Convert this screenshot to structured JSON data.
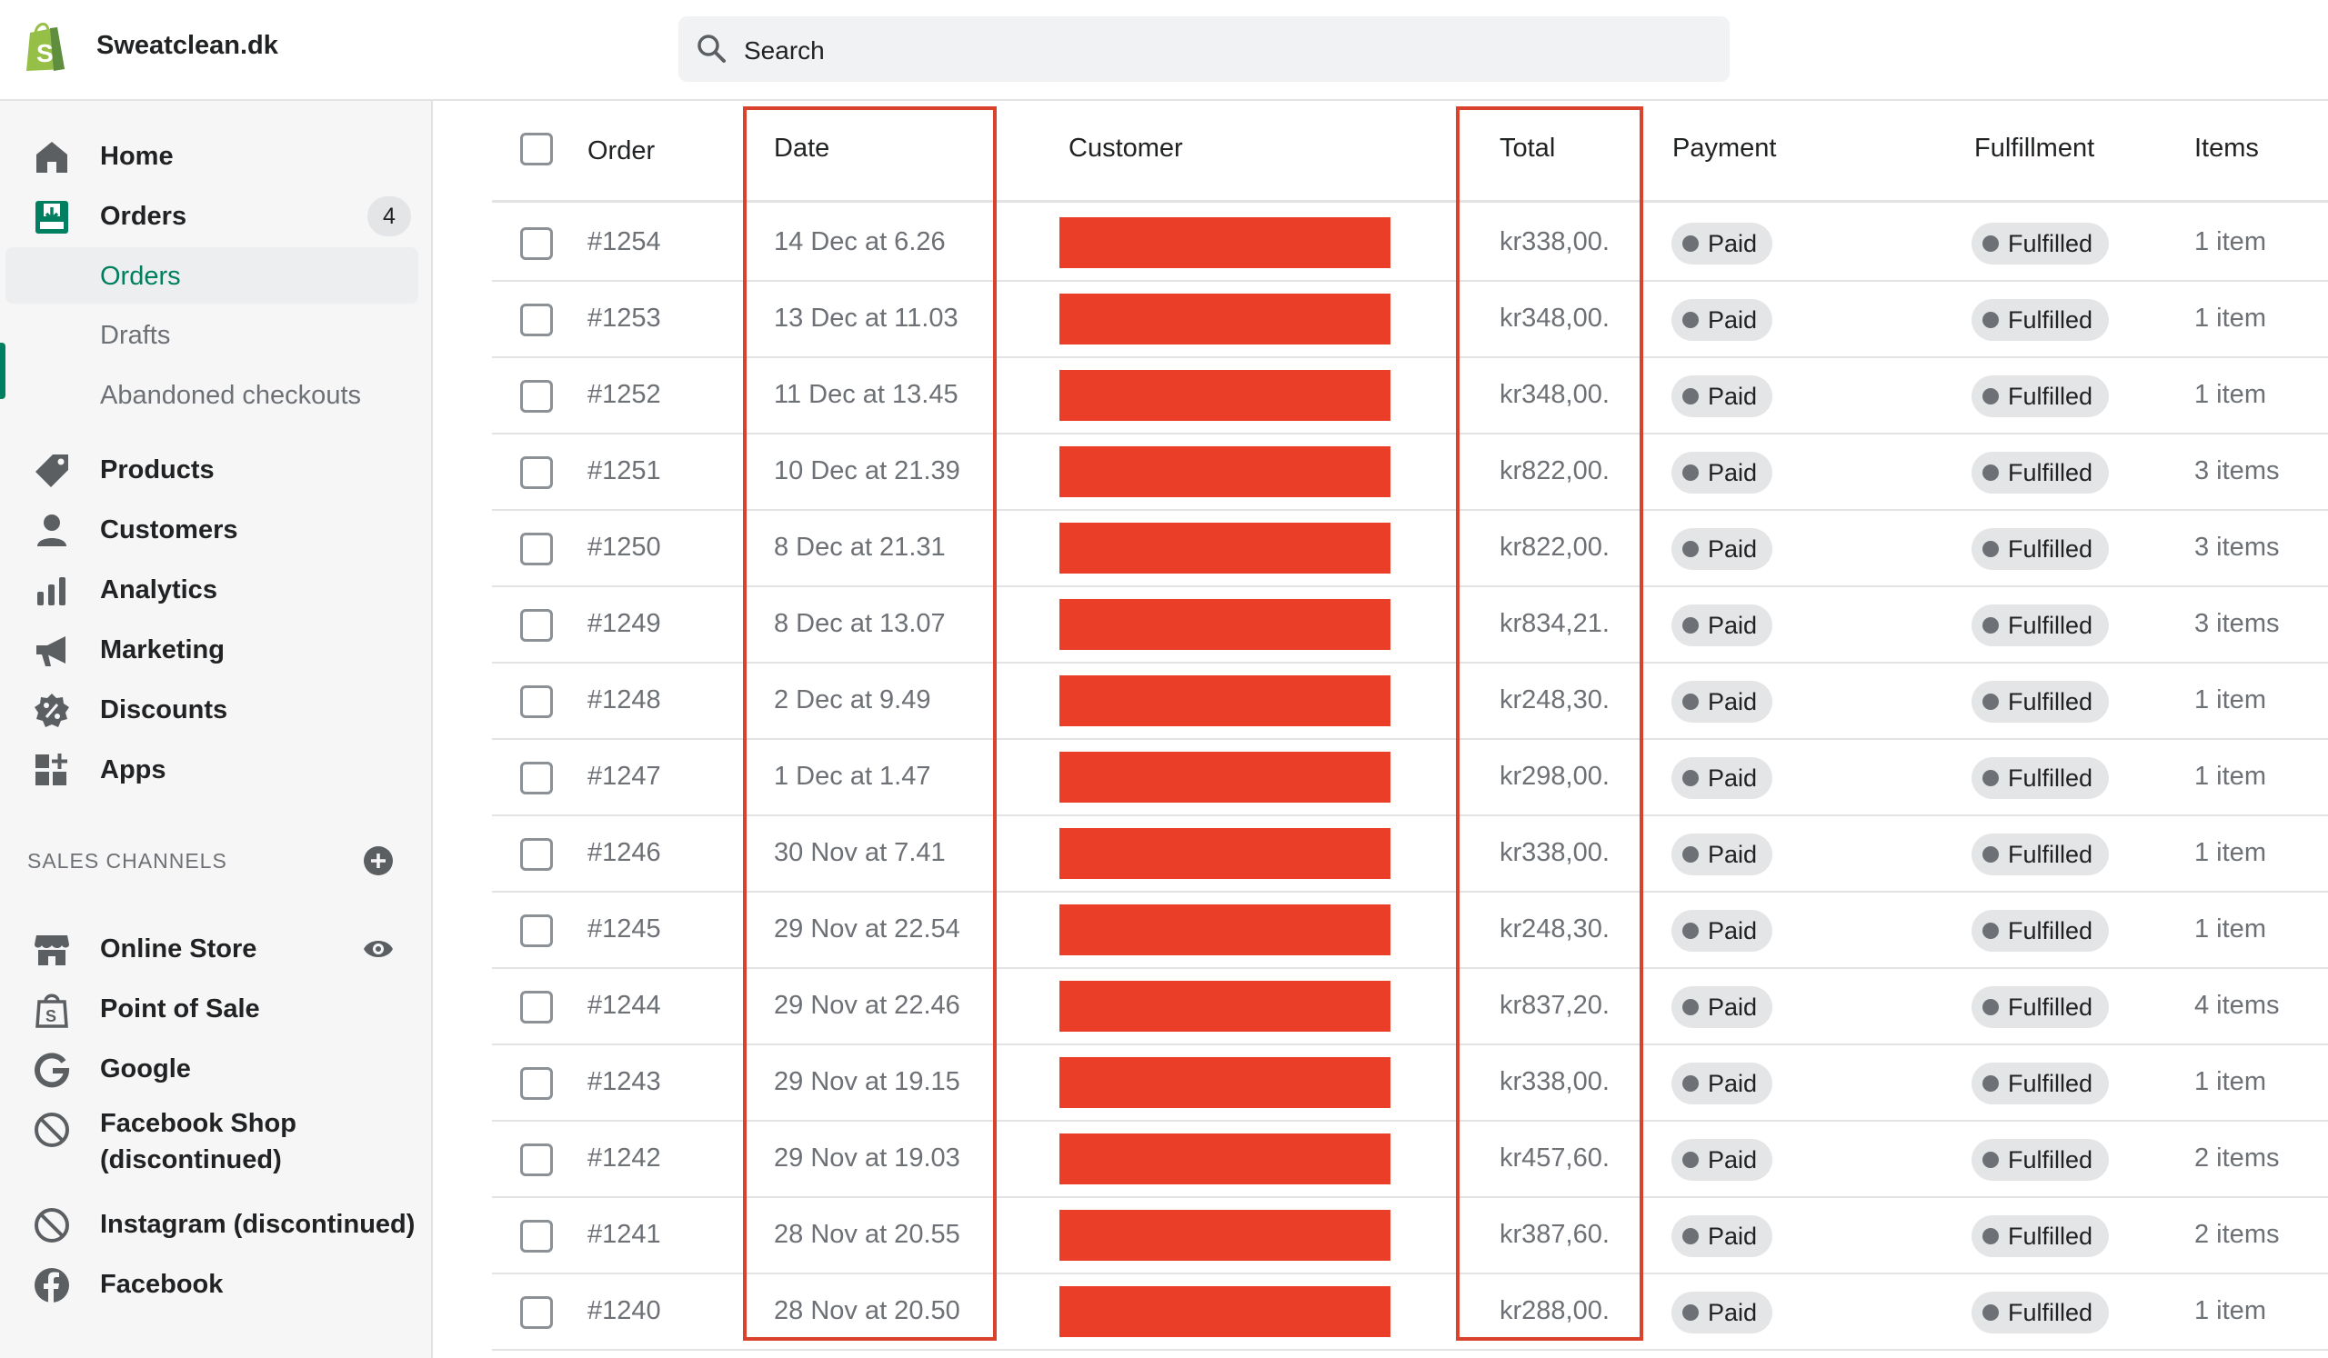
{
  "topbar": {
    "store_name": "Sweatclean.dk",
    "search_placeholder": "Search"
  },
  "sidebar": {
    "items": [
      {
        "label": "Home",
        "icon": "home-icon"
      },
      {
        "label": "Orders",
        "icon": "orders-icon",
        "badge": "4"
      },
      {
        "label": "Orders",
        "sub": true,
        "active": true
      },
      {
        "label": "Drafts",
        "sub": true
      },
      {
        "label": "Abandoned checkouts",
        "sub": true
      },
      {
        "label": "Products",
        "icon": "tag-icon"
      },
      {
        "label": "Customers",
        "icon": "person-icon"
      },
      {
        "label": "Analytics",
        "icon": "bar-chart-icon"
      },
      {
        "label": "Marketing",
        "icon": "megaphone-icon"
      },
      {
        "label": "Discounts",
        "icon": "discount-icon"
      },
      {
        "label": "Apps",
        "icon": "apps-icon"
      }
    ],
    "sales_channels_title": "SALES CHANNELS",
    "channels": [
      {
        "label": "Online Store",
        "icon": "store-icon"
      },
      {
        "label": "Point of Sale",
        "icon": "pos-bag-icon"
      },
      {
        "label": "Google",
        "icon": "google-icon"
      },
      {
        "label_line1": "Facebook Shop",
        "label_line2": "(discontinued)",
        "icon": "prohibited-icon"
      },
      {
        "label": "Instagram (discontinued)",
        "icon": "prohibited-icon"
      },
      {
        "label": "Facebook",
        "icon": "facebook-icon"
      }
    ]
  },
  "table": {
    "headers": {
      "order": "Order",
      "date": "Date",
      "customer": "Customer",
      "total": "Total",
      "payment": "Payment",
      "fulfillment": "Fulfillment",
      "items": "Items"
    },
    "rows": [
      {
        "order": "#1254",
        "date": "14 Dec at 6.26",
        "total": "kr338,00.",
        "payment": "Paid",
        "fulfillment": "Fulfilled",
        "items": "1 item"
      },
      {
        "order": "#1253",
        "date": "13 Dec at 11.03",
        "total": "kr348,00.",
        "payment": "Paid",
        "fulfillment": "Fulfilled",
        "items": "1 item"
      },
      {
        "order": "#1252",
        "date": "11 Dec at 13.45",
        "total": "kr348,00.",
        "payment": "Paid",
        "fulfillment": "Fulfilled",
        "items": "1 item"
      },
      {
        "order": "#1251",
        "date": "10 Dec at 21.39",
        "total": "kr822,00.",
        "payment": "Paid",
        "fulfillment": "Fulfilled",
        "items": "3 items"
      },
      {
        "order": "#1250",
        "date": "8 Dec at 21.31",
        "total": "kr822,00.",
        "payment": "Paid",
        "fulfillment": "Fulfilled",
        "items": "3 items"
      },
      {
        "order": "#1249",
        "date": "8 Dec at 13.07",
        "total": "kr834,21.",
        "payment": "Paid",
        "fulfillment": "Fulfilled",
        "items": "3 items"
      },
      {
        "order": "#1248",
        "date": "2 Dec at 9.49",
        "total": "kr248,30.",
        "payment": "Paid",
        "fulfillment": "Fulfilled",
        "items": "1 item"
      },
      {
        "order": "#1247",
        "date": "1 Dec at 1.47",
        "total": "kr298,00.",
        "payment": "Paid",
        "fulfillment": "Fulfilled",
        "items": "1 item"
      },
      {
        "order": "#1246",
        "date": "30 Nov at 7.41",
        "total": "kr338,00.",
        "payment": "Paid",
        "fulfillment": "Fulfilled",
        "items": "1 item"
      },
      {
        "order": "#1245",
        "date": "29 Nov at 22.54",
        "total": "kr248,30.",
        "payment": "Paid",
        "fulfillment": "Fulfilled",
        "items": "1 item"
      },
      {
        "order": "#1244",
        "date": "29 Nov at 22.46",
        "total": "kr837,20.",
        "payment": "Paid",
        "fulfillment": "Fulfilled",
        "items": "4 items"
      },
      {
        "order": "#1243",
        "date": "29 Nov at 19.15",
        "total": "kr338,00.",
        "payment": "Paid",
        "fulfillment": "Fulfilled",
        "items": "1 item"
      },
      {
        "order": "#1242",
        "date": "29 Nov at 19.03",
        "total": "kr457,60.",
        "payment": "Paid",
        "fulfillment": "Fulfilled",
        "items": "2 items"
      },
      {
        "order": "#1241",
        "date": "28 Nov at 20.55",
        "total": "kr387,60.",
        "payment": "Paid",
        "fulfillment": "Fulfilled",
        "items": "2 items"
      },
      {
        "order": "#1240",
        "date": "28 Nov at 20.50",
        "total": "kr288,00.",
        "payment": "Paid",
        "fulfillment": "Fulfilled",
        "items": "1 item"
      }
    ]
  },
  "colors": {
    "brand_green": "#008060",
    "redaction": "#ea3e28",
    "highlight_box": "#d9432e"
  }
}
